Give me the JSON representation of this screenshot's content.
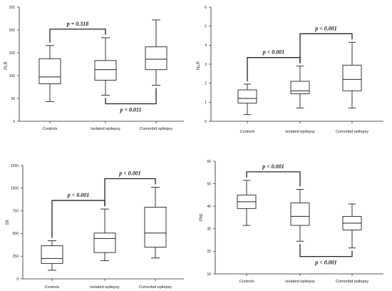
{
  "chart_data": [
    {
      "type": "box",
      "ylabel": "PLR",
      "categories": [
        "Controls",
        "Isolated epilepsy",
        "Comorbid epilepsy"
      ],
      "ylim": [
        0,
        250
      ],
      "yticks": [
        0,
        50,
        100,
        150,
        200,
        250
      ],
      "boxes": [
        {
          "min": 43,
          "q1": 82,
          "median": 97,
          "q3": 137,
          "max": 166
        },
        {
          "min": 57,
          "q1": 90,
          "median": 113,
          "q3": 133,
          "max": 183
        },
        {
          "min": 79,
          "q1": 113,
          "median": 136,
          "q3": 163,
          "max": 222
        }
      ],
      "comparisons": [
        {
          "from": 0,
          "to": 1,
          "label": "p = 0.318",
          "position": "above"
        },
        {
          "from": 1,
          "to": 2,
          "label": "p = 0.011",
          "position": "below"
        }
      ]
    },
    {
      "type": "box",
      "ylabel": "NLR",
      "categories": [
        "Controls",
        "Isolated epilepsy",
        "Comorbid epilepsy"
      ],
      "ylim": [
        0,
        6
      ],
      "yticks": [
        0,
        1,
        2,
        3,
        4,
        5,
        6
      ],
      "boxes": [
        {
          "min": 0.35,
          "q1": 0.95,
          "median": 1.2,
          "q3": 1.65,
          "max": 1.95
        },
        {
          "min": 0.7,
          "q1": 1.45,
          "median": 1.6,
          "q3": 2.1,
          "max": 2.9
        },
        {
          "min": 0.7,
          "q1": 1.6,
          "median": 2.2,
          "q3": 2.95,
          "max": 4.15
        }
      ],
      "comparisons": [
        {
          "from": 0,
          "to": 1,
          "label": "p < 0.001",
          "position": "above"
        },
        {
          "from": 1,
          "to": 2,
          "label": "p < 0.001",
          "position": "above"
        }
      ]
    },
    {
      "type": "box",
      "ylabel": "SII",
      "categories": [
        "Controls",
        "Isolated epilepsy",
        "Comorbid epilepsy"
      ],
      "ylim": [
        0,
        1250
      ],
      "yticks": [
        0,
        250,
        500,
        750,
        1000,
        1250
      ],
      "boxes": [
        {
          "min": 95,
          "q1": 170,
          "median": 225,
          "q3": 365,
          "max": 420
        },
        {
          "min": 200,
          "q1": 290,
          "median": 445,
          "q3": 505,
          "max": 770
        },
        {
          "min": 230,
          "q1": 350,
          "median": 505,
          "q3": 790,
          "max": 1010
        }
      ],
      "comparisons": [
        {
          "from": 0,
          "to": 1,
          "label": "p < 0.001",
          "position": "above"
        },
        {
          "from": 1,
          "to": 2,
          "label": "p < 0.001",
          "position": "above"
        }
      ]
    },
    {
      "type": "box",
      "ylabel": "PNI",
      "categories": [
        "Controls",
        "Isolated epilepsy",
        "Comorbid epilepsy"
      ],
      "ylim": [
        10,
        60
      ],
      "yticks": [
        10,
        20,
        30,
        40,
        50,
        60
      ],
      "boxes": [
        {
          "min": 31.5,
          "q1": 39,
          "median": 42,
          "q3": 45,
          "max": 51.5
        },
        {
          "min": 24.5,
          "q1": 31.5,
          "median": 35.5,
          "q3": 41.5,
          "max": 47.5
        },
        {
          "min": 21.5,
          "q1": 29.5,
          "median": 32.5,
          "q3": 35.5,
          "max": 41
        }
      ],
      "comparisons": [
        {
          "from": 0,
          "to": 1,
          "label": "p < 0.001",
          "position": "above"
        },
        {
          "from": 1,
          "to": 2,
          "label": "p < 0.001",
          "position": "below"
        }
      ]
    }
  ]
}
